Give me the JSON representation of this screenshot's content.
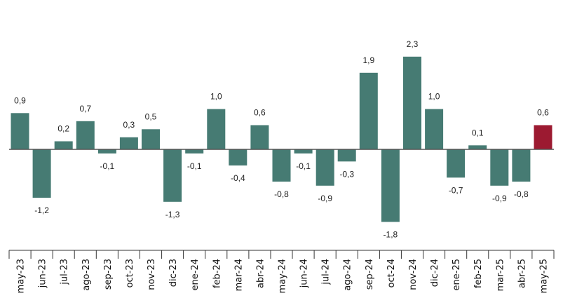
{
  "chart_data": {
    "type": "bar",
    "title": "",
    "xlabel": "",
    "ylabel": "",
    "categories": [
      "may-23",
      "jun-23",
      "jul-23",
      "ago-23",
      "sep-23",
      "oct-23",
      "nov-23",
      "dic-23",
      "ene-24",
      "feb-24",
      "mar-24",
      "abr-24",
      "may-24",
      "jun-24",
      "jul-24",
      "ago-24",
      "sep-24",
      "oct-24",
      "nov-24",
      "dic-24",
      "ene-25",
      "feb-25",
      "mar-25",
      "abr-25",
      "may-25"
    ],
    "values": [
      0.9,
      -1.2,
      0.2,
      0.7,
      -0.1,
      0.3,
      0.5,
      -1.3,
      -0.1,
      1.0,
      -0.4,
      0.6,
      -0.8,
      -0.1,
      -0.9,
      -0.3,
      1.9,
      -1.8,
      2.3,
      1.0,
      -0.7,
      0.1,
      -0.9,
      -0.8,
      0.6
    ],
    "value_labels": [
      "0,9",
      "-1,2",
      "0,2",
      "0,7",
      "-0,1",
      "0,3",
      "0,5",
      "-1,3",
      "-0,1",
      "1,0",
      "-0,4",
      "0,6",
      "-0,8",
      "-0,1",
      "-0,9",
      "-0,3",
      "1,9",
      "-1,8",
      "2,3",
      "1,0",
      "-0,7",
      "0,1",
      "-0,9",
      "-0,8",
      "0,6"
    ],
    "highlight_index": 24,
    "colors": {
      "bar": "#467b73",
      "highlight": "#9c1a31",
      "axis": "#333333"
    },
    "ylim": [
      -2.0,
      2.7
    ],
    "grid": false,
    "legend": "none"
  }
}
